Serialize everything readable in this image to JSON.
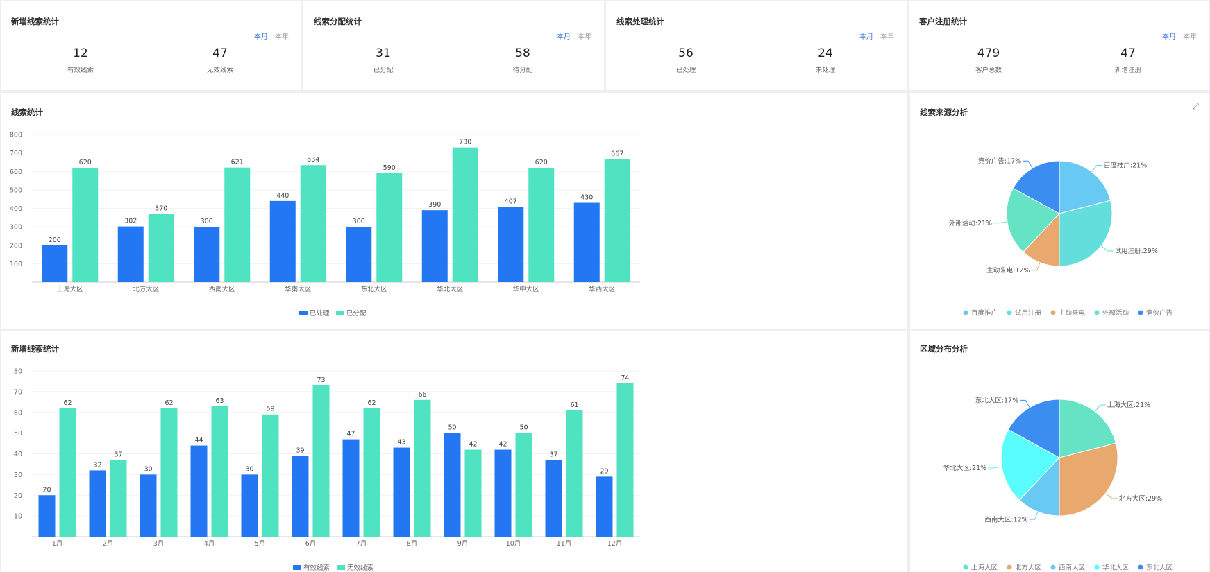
{
  "stat_cards": [
    {
      "title": "新增线索统计",
      "toggle": [
        "本月",
        "本年"
      ],
      "stats": [
        {
          "value": "12",
          "label": "有效线索"
        },
        {
          "value": "47",
          "label": "无效线索"
        }
      ]
    },
    {
      "title": "线索分配统计",
      "toggle": [
        "本月",
        "本年"
      ],
      "stats": [
        {
          "value": "31",
          "label": "已分配"
        },
        {
          "value": "58",
          "label": "待分配"
        }
      ]
    },
    {
      "title": "线索处理统计",
      "toggle": [
        "本月",
        "本年"
      ],
      "stats": [
        {
          "value": "56",
          "label": "已处理"
        },
        {
          "value": "24",
          "label": "未处理"
        }
      ]
    },
    {
      "title": "客户注册统计",
      "toggle": [
        "本月",
        "本年"
      ],
      "stats": [
        {
          "value": "479",
          "label": "客户总数"
        },
        {
          "value": "47",
          "label": "新增注册"
        }
      ]
    }
  ],
  "colors": {
    "blue": "#2477f2",
    "green": "#50e3c2"
  },
  "chart_data": [
    {
      "type": "bar",
      "title": "线索统计",
      "categories": [
        "上海大区",
        "北方大区",
        "西南大区",
        "华南大区",
        "东北大区",
        "华北大区",
        "华中大区",
        "华西大区"
      ],
      "series": [
        {
          "name": "已处理",
          "values": [
            200,
            302,
            300,
            440,
            300,
            390,
            407,
            430
          ],
          "color": "#2477f2"
        },
        {
          "name": "已分配",
          "values": [
            620,
            370,
            621,
            634,
            590,
            730,
            620,
            667
          ],
          "color": "#50e3c2"
        }
      ],
      "ylim": [
        0,
        800
      ],
      "yticks": [
        100,
        200,
        300,
        400,
        500,
        600,
        700,
        800
      ],
      "legend": "bottom"
    },
    {
      "type": "pie",
      "title": "线索来源分析",
      "slices": [
        {
          "name": "百度推广",
          "value": 21,
          "label": "百度推广:21%",
          "color": "#69c9f5"
        },
        {
          "name": "试用注册",
          "value": 29,
          "label": "试用注册:29%",
          "color": "#64dedc"
        },
        {
          "name": "主动来电",
          "value": 12,
          "label": "主动来电:12%",
          "color": "#e8a86e"
        },
        {
          "name": "外部活动",
          "value": 21,
          "label": "外部活动:21%",
          "color": "#66e3c5"
        },
        {
          "name": "竞价广告",
          "value": 17,
          "label": "竞价广告:17%",
          "color": "#3b8ef0"
        }
      ],
      "legend": "bottom"
    },
    {
      "type": "bar",
      "title": "新增线索统计",
      "categories": [
        "1月",
        "2月",
        "3月",
        "4月",
        "5月",
        "6月",
        "7月",
        "8月",
        "9月",
        "10月",
        "11月",
        "12月"
      ],
      "series": [
        {
          "name": "有效线索",
          "values": [
            20,
            32,
            30,
            44,
            30,
            39,
            47,
            43,
            50,
            42,
            37,
            29
          ],
          "color": "#2477f2"
        },
        {
          "name": "无效线索",
          "values": [
            62,
            37,
            62,
            63,
            59,
            73,
            62,
            66,
            42,
            50,
            61,
            74
          ],
          "color": "#50e3c2"
        }
      ],
      "ylim": [
        0,
        80
      ],
      "yticks": [
        10,
        20,
        30,
        40,
        50,
        60,
        70,
        80
      ],
      "legend": "bottom"
    },
    {
      "type": "pie",
      "title": "区域分布分析",
      "slices": [
        {
          "name": "上海大区",
          "value": 21,
          "label": "上海大区:21%",
          "color": "#66e3c5"
        },
        {
          "name": "北方大区",
          "value": 29,
          "label": "北方大区:29%",
          "color": "#e8a86e"
        },
        {
          "name": "西南大区",
          "value": 12,
          "label": "西南大区:12%",
          "color": "#69c9f5"
        },
        {
          "name": "华北大区",
          "value": 21,
          "label": "华北大区:21%",
          "color": "#59fdfd"
        },
        {
          "name": "东北大区",
          "value": 17,
          "label": "东北大区:17%",
          "color": "#3b8ef0"
        }
      ],
      "legend": "bottom"
    }
  ]
}
